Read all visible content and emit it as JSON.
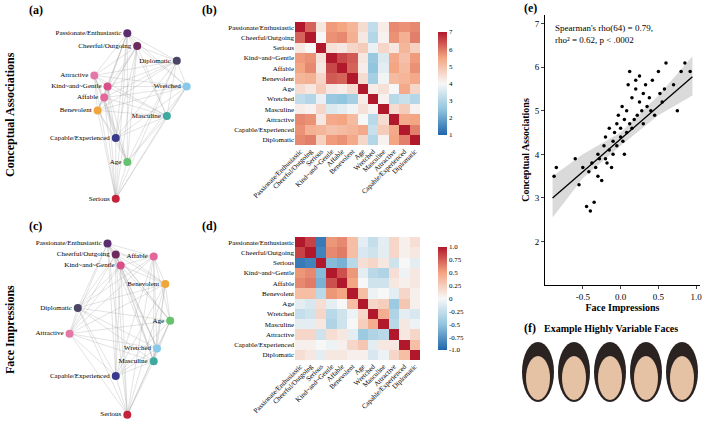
{
  "row_labels": [
    "Conceptual Associations",
    "Face Impressions"
  ],
  "chart_data": [
    {
      "panel": "(a)",
      "type": "network",
      "tick_labels": false,
      "xlim": [
        0,
        1
      ],
      "ylim": [
        0,
        1
      ],
      "nodes": [
        {
          "label": "Passionate/Enthusiastic",
          "x": 0.62,
          "y": 0.95,
          "color": "#5b2c6f"
        },
        {
          "label": "Cheerful/Outgoing",
          "x": 0.68,
          "y": 0.88,
          "color": "#6c2a5e"
        },
        {
          "label": "Diplomatic",
          "x": 0.92,
          "y": 0.8,
          "color": "#4b4566"
        },
        {
          "label": "Attractive",
          "x": 0.42,
          "y": 0.72,
          "color": "#e377a8"
        },
        {
          "label": "Kind~and~Gentle",
          "x": 0.5,
          "y": 0.66,
          "color": "#d94f8a"
        },
        {
          "label": "Affable",
          "x": 0.48,
          "y": 0.6,
          "color": "#e3679a"
        },
        {
          "label": "Benevolent",
          "x": 0.44,
          "y": 0.53,
          "color": "#f0a63a"
        },
        {
          "label": "Wretched",
          "x": 0.98,
          "y": 0.66,
          "color": "#86c9e8"
        },
        {
          "label": "Masculine",
          "x": 0.86,
          "y": 0.5,
          "color": "#3fa9a0"
        },
        {
          "label": "Capable/Experienced",
          "x": 0.55,
          "y": 0.38,
          "color": "#3a3a8c"
        },
        {
          "label": "Age",
          "x": 0.62,
          "y": 0.25,
          "color": "#66c26e"
        },
        {
          "label": "Serious",
          "x": 0.55,
          "y": 0.05,
          "color": "#c3243c"
        }
      ]
    },
    {
      "panel": "(b)",
      "type": "heatmap",
      "labels": [
        "Passionate/Enthusiastic",
        "Cheerful/Outgoing",
        "Serious",
        "Kind~and~Gentle",
        "Affable",
        "Benevolent",
        "Age",
        "Wretched",
        "Masculine",
        "Attractive",
        "Capable/Experienced",
        "Diplomatic"
      ],
      "cells": [
        [
          7,
          6.2,
          4.3,
          5.6,
          5.5,
          5.2,
          4.5,
          3.2,
          4.2,
          5.8,
          5.7,
          5.8
        ],
        [
          6.2,
          7,
          4.0,
          5.7,
          5.8,
          5.3,
          4.3,
          3.0,
          4.1,
          5.7,
          5.3,
          5.9
        ],
        [
          4.3,
          4.0,
          7,
          4.4,
          4.3,
          4.6,
          4.8,
          3.8,
          4.6,
          4.3,
          5.2,
          4.7
        ],
        [
          5.6,
          5.7,
          4.4,
          7,
          6.5,
          6.3,
          4.3,
          2.6,
          3.6,
          5.4,
          5.0,
          5.6
        ],
        [
          5.5,
          5.8,
          4.3,
          6.5,
          7,
          6.2,
          4.2,
          2.5,
          3.7,
          5.5,
          5.1,
          5.7
        ],
        [
          5.2,
          5.3,
          4.6,
          6.3,
          6.2,
          7,
          4.5,
          2.8,
          3.9,
          5.1,
          5.2,
          5.4
        ],
        [
          4.5,
          4.3,
          4.8,
          4.3,
          4.2,
          4.5,
          7,
          4.2,
          4.4,
          4.0,
          5.4,
          4.6
        ],
        [
          3.2,
          3.0,
          3.8,
          2.6,
          2.5,
          2.8,
          4.2,
          7,
          4.1,
          3.1,
          3.3,
          3.0
        ],
        [
          4.2,
          4.1,
          4.6,
          3.6,
          3.7,
          3.9,
          4.4,
          4.1,
          7,
          4.5,
          4.8,
          4.1
        ],
        [
          5.8,
          5.7,
          4.3,
          5.4,
          5.5,
          5.1,
          4.0,
          3.1,
          4.5,
          7,
          5.4,
          5.5
        ],
        [
          5.7,
          5.3,
          5.2,
          5.0,
          5.1,
          5.2,
          5.4,
          3.3,
          4.8,
          5.4,
          7,
          5.9
        ],
        [
          5.8,
          5.9,
          4.7,
          5.6,
          5.7,
          5.4,
          4.6,
          3.0,
          4.1,
          5.5,
          5.9,
          7
        ]
      ],
      "colorbar": {
        "range": [
          1,
          7
        ],
        "ticks": [
          1,
          2,
          3,
          4,
          5,
          6,
          7
        ]
      }
    },
    {
      "panel": "(c)",
      "type": "network",
      "tick_labels": false,
      "xlim": [
        0,
        1
      ],
      "ylim": [
        0,
        1
      ],
      "nodes": [
        {
          "label": "Passionate/Enthusiastic",
          "x": 0.5,
          "y": 0.97,
          "color": "#5b2c6f"
        },
        {
          "label": "Cheerful/Outgoing",
          "x": 0.55,
          "y": 0.91,
          "color": "#6c2a5e"
        },
        {
          "label": "Kind~and~Gentle",
          "x": 0.58,
          "y": 0.85,
          "color": "#d94f8a"
        },
        {
          "label": "Affable",
          "x": 0.78,
          "y": 0.9,
          "color": "#e3679a"
        },
        {
          "label": "Benevolent",
          "x": 0.85,
          "y": 0.75,
          "color": "#f0a63a"
        },
        {
          "label": "Diplomatic",
          "x": 0.32,
          "y": 0.62,
          "color": "#4b4566"
        },
        {
          "label": "Attractive",
          "x": 0.27,
          "y": 0.48,
          "color": "#e377a8"
        },
        {
          "label": "Age",
          "x": 0.88,
          "y": 0.55,
          "color": "#66c26e"
        },
        {
          "label": "Wretched",
          "x": 0.8,
          "y": 0.4,
          "color": "#86c9e8"
        },
        {
          "label": "Masculine",
          "x": 0.78,
          "y": 0.33,
          "color": "#3fa9a0"
        },
        {
          "label": "Capable/Experienced",
          "x": 0.55,
          "y": 0.25,
          "color": "#3a3a8c"
        },
        {
          "label": "Serious",
          "x": 0.62,
          "y": 0.04,
          "color": "#c3243c"
        }
      ]
    },
    {
      "panel": "(d)",
      "type": "heatmap",
      "labels": [
        "Passionate/Enthusiastic",
        "Cheerful/Outgoing",
        "Serious",
        "Kind~and~Gentle",
        "Affable",
        "Benevolent",
        "Age",
        "Wretched",
        "Masculine",
        "Attractive",
        "Capable/Experienced",
        "Diplomatic"
      ],
      "cells": [
        [
          1,
          0.85,
          -0.9,
          0.55,
          0.6,
          0.35,
          -0.1,
          -0.25,
          -0.1,
          0.2,
          0.05,
          0.15
        ],
        [
          0.85,
          1,
          -0.85,
          0.6,
          0.65,
          0.35,
          -0.15,
          -0.2,
          -0.1,
          0.2,
          0.05,
          0.1
        ],
        [
          -0.9,
          -0.85,
          1,
          -0.55,
          -0.6,
          -0.3,
          0.15,
          0.2,
          0.1,
          -0.2,
          0.0,
          -0.1
        ],
        [
          0.55,
          0.6,
          -0.55,
          1,
          0.8,
          0.55,
          -0.1,
          -0.3,
          -0.35,
          0.15,
          -0.05,
          0.1
        ],
        [
          0.6,
          0.65,
          -0.6,
          0.8,
          1,
          0.5,
          0.0,
          -0.2,
          -0.2,
          0.1,
          0.05,
          0.1
        ],
        [
          0.35,
          0.35,
          -0.3,
          0.55,
          0.5,
          1,
          0.35,
          -0.05,
          0.0,
          -0.1,
          0.2,
          0.05
        ],
        [
          -0.1,
          -0.15,
          0.15,
          -0.1,
          0.0,
          0.35,
          1,
          0.2,
          0.25,
          -0.45,
          0.3,
          0.05
        ],
        [
          -0.25,
          -0.2,
          0.2,
          -0.3,
          -0.2,
          -0.05,
          0.2,
          1,
          0.45,
          -0.35,
          -0.1,
          -0.15
        ],
        [
          -0.1,
          -0.1,
          0.1,
          -0.35,
          -0.2,
          0.0,
          0.25,
          0.45,
          1,
          -0.3,
          0.1,
          -0.05
        ],
        [
          0.2,
          0.2,
          -0.2,
          0.15,
          0.1,
          -0.1,
          -0.45,
          -0.35,
          -0.3,
          1,
          0.1,
          0.2
        ],
        [
          0.05,
          0.05,
          0.0,
          -0.05,
          0.05,
          0.2,
          0.3,
          -0.1,
          0.1,
          0.1,
          1,
          0.35
        ],
        [
          0.15,
          0.1,
          -0.1,
          0.1,
          0.1,
          0.05,
          0.05,
          -0.15,
          -0.05,
          0.2,
          0.35,
          1
        ]
      ],
      "colorbar": {
        "range": [
          -1,
          1
        ],
        "ticks": [
          {
            "value": -1,
            "label": "-1.0"
          },
          -0.75,
          -0.5,
          -0.25,
          0,
          0.25,
          0.5,
          0.75,
          {
            "value": 1,
            "label": "1.0"
          }
        ]
      }
    },
    {
      "panel": "(e)",
      "type": "scatter",
      "xlabel": "Face Impressions",
      "ylabel": "Conceptual Associations",
      "color": "#000000",
      "xlim": [
        -1,
        1.05
      ],
      "ylim": [
        1,
        7.2
      ],
      "xticks": [
        -0.5,
        {
          "value": 0,
          "label": "0.0"
        },
        0.5,
        {
          "value": 1,
          "label": "1.0"
        }
      ],
      "yticks": [
        2,
        3,
        4,
        5,
        6,
        7
      ],
      "annotations": [
        "Spearman's rho(64) = 0.79,",
        "rho² = 0.62, p < .0002"
      ],
      "x": [
        -0.88,
        -0.85,
        -0.6,
        -0.55,
        -0.5,
        -0.45,
        -0.42,
        -0.4,
        -0.38,
        -0.35,
        -0.33,
        -0.3,
        -0.3,
        -0.28,
        -0.25,
        -0.22,
        -0.2,
        -0.2,
        -0.18,
        -0.15,
        -0.15,
        -0.12,
        -0.1,
        -0.1,
        -0.08,
        -0.05,
        -0.05,
        -0.03,
        0,
        0,
        0.02,
        0.03,
        0.05,
        0.05,
        0.08,
        0.08,
        0.1,
        0.12,
        0.12,
        0.15,
        0.15,
        0.18,
        0.2,
        0.2,
        0.22,
        0.25,
        0.25,
        0.28,
        0.3,
        0.3,
        0.33,
        0.35,
        0.38,
        0.4,
        0.42,
        0.45,
        0.5,
        0.52,
        0.55,
        0.58,
        0.6,
        0.7,
        0.75,
        0.8,
        0.85,
        0.92
      ],
      "y": [
        3.5,
        3.7,
        3.9,
        3.3,
        3.7,
        2.8,
        3.6,
        2.7,
        3.8,
        2.9,
        3.7,
        4.0,
        3.5,
        3.9,
        3.4,
        4.2,
        3.9,
        4.4,
        3.8,
        4.1,
        4.6,
        3.7,
        4.3,
        4.0,
        4.5,
        4.7,
        4.2,
        4.9,
        4.4,
        4.6,
        5.1,
        4.3,
        4.8,
        4.0,
        5.0,
        4.5,
        5.6,
        4.7,
        5.9,
        4.6,
        5.3,
        4.8,
        5.5,
        5.7,
        4.9,
        5.2,
        5.8,
        5.0,
        4.7,
        5.4,
        5.6,
        5.1,
        5.3,
        5.0,
        5.7,
        4.9,
        5.9,
        5.4,
        5.2,
        5.5,
        6.1,
        5.6,
        5.0,
        5.9,
        6.1,
        5.9
      ],
      "fit": {
        "x": [
          -0.9,
          -0.5,
          0,
          0.5,
          0.95
        ],
        "y": [
          3.0,
          3.6,
          4.35,
          5.1,
          5.78
        ],
        "lower": [
          2.55,
          3.45,
          4.2,
          4.9,
          5.35
        ],
        "upper": [
          3.5,
          4.0,
          4.5,
          5.35,
          6.25
        ]
      }
    },
    {
      "panel": "(f)",
      "type": "images",
      "title": "Example Highly Variable Faces",
      "faces": 5
    }
  ]
}
